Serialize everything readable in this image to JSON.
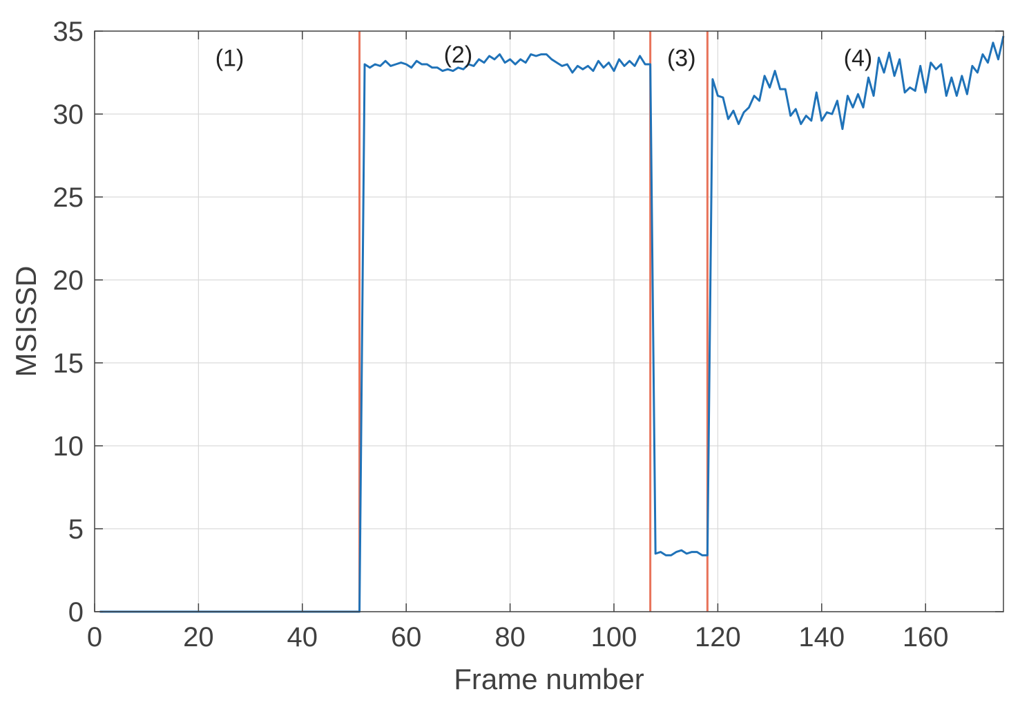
{
  "chart_data": {
    "type": "line",
    "title": "",
    "xlabel": "Frame number",
    "ylabel": "MSISSD",
    "xlim": [
      0,
      175
    ],
    "ylim": [
      0,
      35
    ],
    "xticks": [
      0,
      20,
      40,
      60,
      80,
      100,
      120,
      140,
      160
    ],
    "yticks": [
      0,
      5,
      10,
      15,
      20,
      25,
      30,
      35
    ],
    "grid": true,
    "legend": "none",
    "colors": {
      "series": "#1f72b8",
      "boundary": "#e8735a",
      "grid": "#d9d9d9",
      "axis": "#404040"
    },
    "boundaries": [
      51,
      107,
      118
    ],
    "annotations": [
      {
        "text": "(1)",
        "x": 26,
        "y": 33.4
      },
      {
        "text": "(2)",
        "x": 70,
        "y": 33.6
      },
      {
        "text": "(3)",
        "x": 113,
        "y": 33.4
      },
      {
        "text": "(4)",
        "x": 147,
        "y": 33.4
      }
    ],
    "series": [
      {
        "x": [
          1,
          2,
          3,
          4,
          5,
          6,
          7,
          8,
          9,
          10,
          11,
          12,
          13,
          14,
          15,
          16,
          17,
          18,
          19,
          20,
          21,
          22,
          23,
          24,
          25,
          26,
          27,
          28,
          29,
          30,
          31,
          32,
          33,
          34,
          35,
          36,
          37,
          38,
          39,
          40,
          41,
          42,
          43,
          44,
          45,
          46,
          47,
          48,
          49,
          50,
          51,
          52,
          53,
          54,
          55,
          56,
          57,
          58,
          59,
          60,
          61,
          62,
          63,
          64,
          65,
          66,
          67,
          68,
          69,
          70,
          71,
          72,
          73,
          74,
          75,
          76,
          77,
          78,
          79,
          80,
          81,
          82,
          83,
          84,
          85,
          86,
          87,
          88,
          89,
          90,
          91,
          92,
          93,
          94,
          95,
          96,
          97,
          98,
          99,
          100,
          101,
          102,
          103,
          104,
          105,
          106,
          107,
          108,
          109,
          110,
          111,
          112,
          113,
          114,
          115,
          116,
          117,
          118,
          119,
          120,
          121,
          122,
          123,
          124,
          125,
          126,
          127,
          128,
          129,
          130,
          131,
          132,
          133,
          134,
          135,
          136,
          137,
          138,
          139,
          140,
          141,
          142,
          143,
          144,
          145,
          146,
          147,
          148,
          149,
          150,
          151,
          152,
          153,
          154,
          155,
          156,
          157,
          158,
          159,
          160,
          161,
          162,
          163,
          164,
          165,
          166,
          167,
          168,
          169,
          170,
          171,
          172,
          173,
          174,
          175
        ],
        "values": [
          0,
          0,
          0,
          0,
          0,
          0,
          0,
          0,
          0,
          0,
          0,
          0,
          0,
          0,
          0,
          0,
          0,
          0,
          0,
          0,
          0,
          0,
          0,
          0,
          0,
          0,
          0,
          0,
          0,
          0,
          0,
          0,
          0,
          0,
          0,
          0,
          0,
          0,
          0,
          0,
          0,
          0,
          0,
          0,
          0,
          0,
          0,
          0,
          0,
          0,
          0,
          33.0,
          32.8,
          33.0,
          32.9,
          33.2,
          32.9,
          33.0,
          33.1,
          33.0,
          32.8,
          33.2,
          33.0,
          33.0,
          32.8,
          32.8,
          32.6,
          32.7,
          32.6,
          32.8,
          32.7,
          33.0,
          32.9,
          33.3,
          33.1,
          33.5,
          33.3,
          33.6,
          33.1,
          33.3,
          33.0,
          33.3,
          33.1,
          33.6,
          33.5,
          33.6,
          33.6,
          33.3,
          33.1,
          32.9,
          33.0,
          32.5,
          32.9,
          32.7,
          32.9,
          32.6,
          33.2,
          32.8,
          33.1,
          32.6,
          33.3,
          32.9,
          33.2,
          32.9,
          33.5,
          33.0,
          33.0,
          3.5,
          3.6,
          3.4,
          3.4,
          3.6,
          3.7,
          3.5,
          3.6,
          3.6,
          3.4,
          3.4,
          32.1,
          31.1,
          31.0,
          29.7,
          30.2,
          29.4,
          30.1,
          30.4,
          31.1,
          30.8,
          32.3,
          31.6,
          32.6,
          31.5,
          31.5,
          29.9,
          30.3,
          29.4,
          29.9,
          29.6,
          31.3,
          29.6,
          30.1,
          30.0,
          30.8,
          29.1,
          31.1,
          30.4,
          31.2,
          30.4,
          32.2,
          31.1,
          33.4,
          32.5,
          33.7,
          32.3,
          33.3,
          31.3,
          31.6,
          31.4,
          32.9,
          31.3,
          33.1,
          32.7,
          33.0,
          31.1,
          32.2,
          31.1,
          32.3,
          31.2,
          32.9,
          32.5,
          33.6,
          33.1,
          34.3,
          33.3,
          34.7
        ]
      }
    ]
  }
}
